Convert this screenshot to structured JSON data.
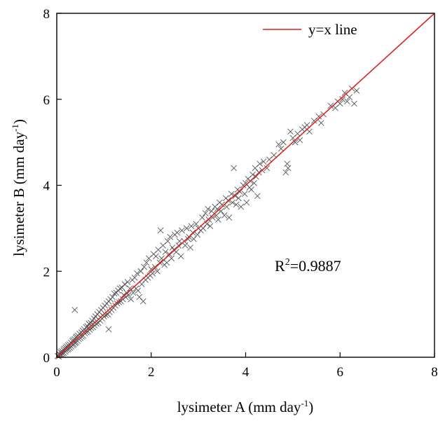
{
  "chart_data": {
    "type": "scatter",
    "xlabel": {
      "main": "lysimeter A (mm day",
      "sup": "-1",
      "end": ")"
    },
    "ylabel": {
      "main": "lysimeter B (mm day",
      "sup": "-1",
      "end": ")"
    },
    "xlim": [
      0,
      8
    ],
    "ylim": [
      0,
      8
    ],
    "xticks": [
      0,
      2,
      4,
      6,
      8
    ],
    "yticks": [
      0,
      2,
      4,
      6,
      8
    ],
    "grid": false,
    "legend": {
      "position": "top-right",
      "entries": [
        "y=x line"
      ]
    },
    "annotation": {
      "prefix": "R",
      "sup": "2",
      "value": "=0.9887"
    },
    "reference_line": {
      "name": "y=x line",
      "from": [
        0,
        0
      ],
      "to": [
        8,
        8
      ],
      "color": "#dd2222"
    },
    "marker_color": "#555555",
    "series": [
      {
        "marker": "x",
        "points": [
          [
            0.02,
            0.03
          ],
          [
            0.04,
            0.02
          ],
          [
            0.05,
            0.08
          ],
          [
            0.07,
            0.05
          ],
          [
            0.08,
            0.12
          ],
          [
            0.1,
            0.06
          ],
          [
            0.11,
            0.14
          ],
          [
            0.12,
            0.09
          ],
          [
            0.14,
            0.17
          ],
          [
            0.15,
            0.1
          ],
          [
            0.16,
            0.2
          ],
          [
            0.18,
            0.13
          ],
          [
            0.19,
            0.22
          ],
          [
            0.2,
            0.16
          ],
          [
            0.21,
            0.25
          ],
          [
            0.23,
            0.18
          ],
          [
            0.24,
            0.28
          ],
          [
            0.25,
            0.2
          ],
          [
            0.27,
            0.3
          ],
          [
            0.28,
            0.22
          ],
          [
            0.3,
            0.34
          ],
          [
            0.31,
            0.25
          ],
          [
            0.33,
            0.38
          ],
          [
            0.34,
            0.28
          ],
          [
            0.35,
            0.4
          ],
          [
            0.36,
            0.3
          ],
          [
            0.38,
            0.42
          ],
          [
            0.39,
            0.33
          ],
          [
            0.4,
            0.46
          ],
          [
            0.41,
            0.35
          ],
          [
            0.38,
            1.1
          ],
          [
            0.42,
            0.48
          ],
          [
            0.44,
            0.38
          ],
          [
            0.45,
            0.5
          ],
          [
            0.47,
            0.42
          ],
          [
            0.48,
            0.55
          ],
          [
            0.5,
            0.45
          ],
          [
            0.52,
            0.58
          ],
          [
            0.53,
            0.48
          ],
          [
            0.55,
            0.62
          ],
          [
            0.56,
            0.5
          ],
          [
            0.58,
            0.65
          ],
          [
            0.6,
            0.55
          ],
          [
            0.62,
            0.7
          ],
          [
            0.63,
            0.58
          ],
          [
            0.65,
            0.72
          ],
          [
            0.66,
            0.6
          ],
          [
            0.68,
            0.78
          ],
          [
            0.7,
            0.64
          ],
          [
            0.72,
            0.8
          ],
          [
            0.73,
            0.68
          ],
          [
            0.75,
            0.85
          ],
          [
            0.77,
            0.7
          ],
          [
            0.79,
            0.9
          ],
          [
            0.8,
            0.74
          ],
          [
            0.82,
            0.95
          ],
          [
            0.84,
            0.78
          ],
          [
            0.86,
            1.0
          ],
          [
            0.88,
            0.8
          ],
          [
            0.9,
            1.05
          ],
          [
            0.92,
            0.85
          ],
          [
            0.94,
            1.1
          ],
          [
            0.96,
            0.9
          ],
          [
            0.98,
            1.15
          ],
          [
            1.0,
            0.95
          ],
          [
            1.02,
            1.2
          ],
          [
            1.04,
            0.98
          ],
          [
            1.06,
            1.25
          ],
          [
            1.08,
            1.0
          ],
          [
            1.1,
            1.3
          ],
          [
            1.1,
            0.65
          ],
          [
            1.12,
            1.05
          ],
          [
            1.14,
            1.35
          ],
          [
            1.16,
            1.1
          ],
          [
            1.18,
            1.4
          ],
          [
            1.2,
            1.15
          ],
          [
            1.22,
            1.48
          ],
          [
            1.24,
            1.2
          ],
          [
            1.26,
            1.5
          ],
          [
            1.28,
            1.25
          ],
          [
            1.3,
            1.55
          ],
          [
            1.32,
            1.28
          ],
          [
            1.34,
            1.6
          ],
          [
            1.36,
            1.3
          ],
          [
            1.38,
            1.62
          ],
          [
            1.4,
            1.35
          ],
          [
            1.42,
            1.45
          ],
          [
            1.44,
            1.7
          ],
          [
            1.46,
            1.4
          ],
          [
            1.48,
            1.5
          ],
          [
            1.5,
            1.75
          ],
          [
            1.52,
            1.45
          ],
          [
            1.55,
            1.6
          ],
          [
            1.57,
            1.35
          ],
          [
            1.6,
            1.8
          ],
          [
            1.62,
            1.5
          ],
          [
            1.65,
            1.85
          ],
          [
            1.68,
            1.6
          ],
          [
            1.7,
            1.95
          ],
          [
            1.72,
            1.55
          ],
          [
            1.75,
            1.4
          ],
          [
            1.78,
            2.0
          ],
          [
            1.8,
            1.7
          ],
          [
            1.83,
            1.3
          ],
          [
            1.85,
            2.1
          ],
          [
            1.88,
            1.8
          ],
          [
            1.9,
            2.2
          ],
          [
            1.93,
            1.85
          ],
          [
            1.95,
            2.3
          ],
          [
            1.98,
            1.9
          ],
          [
            2.0,
            2.05
          ],
          [
            2.03,
            1.95
          ],
          [
            2.05,
            2.4
          ],
          [
            2.08,
            2.1
          ],
          [
            2.1,
            2.35
          ],
          [
            2.13,
            2.0
          ],
          [
            2.15,
            2.5
          ],
          [
            2.18,
            2.2
          ],
          [
            2.2,
            2.95
          ],
          [
            2.22,
            2.3
          ],
          [
            2.25,
            2.6
          ],
          [
            2.28,
            2.15
          ],
          [
            2.3,
            2.45
          ],
          [
            2.33,
            2.2
          ],
          [
            2.35,
            2.7
          ],
          [
            2.38,
            2.4
          ],
          [
            2.4,
            2.8
          ],
          [
            2.43,
            2.3
          ],
          [
            2.45,
            2.55
          ],
          [
            2.48,
            2.5
          ],
          [
            2.5,
            2.85
          ],
          [
            2.53,
            2.45
          ],
          [
            2.55,
            2.9
          ],
          [
            2.58,
            2.6
          ],
          [
            2.6,
            2.7
          ],
          [
            2.63,
            2.35
          ],
          [
            2.65,
            2.95
          ],
          [
            2.7,
            2.7
          ],
          [
            2.72,
            2.6
          ],
          [
            2.75,
            3.0
          ],
          [
            2.78,
            2.75
          ],
          [
            2.8,
            2.8
          ],
          [
            2.83,
            2.55
          ],
          [
            2.85,
            3.05
          ],
          [
            2.88,
            2.9
          ],
          [
            2.9,
            2.75
          ],
          [
            2.95,
            3.1
          ],
          [
            2.98,
            2.85
          ],
          [
            3.0,
            3.0
          ],
          [
            3.05,
            2.95
          ],
          [
            3.08,
            3.25
          ],
          [
            3.1,
            3.0
          ],
          [
            3.15,
            3.35
          ],
          [
            3.18,
            3.1
          ],
          [
            3.2,
            3.45
          ],
          [
            3.22,
            3.2
          ],
          [
            3.25,
            3.05
          ],
          [
            3.28,
            3.4
          ],
          [
            3.3,
            3.25
          ],
          [
            3.35,
            3.5
          ],
          [
            3.38,
            3.3
          ],
          [
            3.4,
            3.45
          ],
          [
            3.42,
            3.2
          ],
          [
            3.45,
            3.6
          ],
          [
            3.48,
            3.4
          ],
          [
            3.5,
            3.55
          ],
          [
            3.55,
            3.3
          ],
          [
            3.58,
            3.7
          ],
          [
            3.6,
            3.5
          ],
          [
            3.63,
            3.65
          ],
          [
            3.65,
            3.25
          ],
          [
            3.7,
            3.8
          ],
          [
            3.72,
            3.6
          ],
          [
            3.75,
            4.4
          ],
          [
            3.78,
            3.75
          ],
          [
            3.8,
            3.55
          ],
          [
            3.83,
            3.9
          ],
          [
            3.85,
            3.7
          ],
          [
            3.88,
            3.85
          ],
          [
            3.9,
            3.5
          ],
          [
            3.95,
            4.0
          ],
          [
            3.98,
            3.8
          ],
          [
            4.0,
            4.05
          ],
          [
            4.02,
            3.6
          ],
          [
            4.05,
            4.15
          ],
          [
            4.08,
            3.95
          ],
          [
            4.1,
            4.1
          ],
          [
            4.12,
            3.9
          ],
          [
            4.15,
            4.25
          ],
          [
            4.18,
            4.05
          ],
          [
            4.2,
            4.4
          ],
          [
            4.22,
            4.2
          ],
          [
            4.25,
            3.75
          ],
          [
            4.28,
            4.3
          ],
          [
            4.3,
            4.5
          ],
          [
            4.35,
            4.35
          ],
          [
            4.38,
            4.55
          ],
          [
            4.45,
            4.4
          ],
          [
            4.5,
            4.6
          ],
          [
            4.6,
            4.7
          ],
          [
            4.7,
            4.95
          ],
          [
            4.75,
            4.85
          ],
          [
            4.8,
            5.0
          ],
          [
            4.85,
            4.3
          ],
          [
            4.88,
            4.5
          ],
          [
            4.9,
            4.4
          ],
          [
            4.95,
            5.25
          ],
          [
            5.0,
            5.1
          ],
          [
            5.05,
            5.0
          ],
          [
            5.1,
            5.2
          ],
          [
            5.15,
            5.05
          ],
          [
            5.2,
            5.3
          ],
          [
            5.25,
            5.35
          ],
          [
            5.3,
            5.4
          ],
          [
            5.35,
            5.25
          ],
          [
            5.45,
            5.5
          ],
          [
            5.55,
            5.6
          ],
          [
            5.6,
            5.45
          ],
          [
            5.65,
            5.65
          ],
          [
            5.8,
            5.85
          ],
          [
            5.9,
            5.8
          ],
          [
            5.95,
            5.95
          ],
          [
            6.0,
            5.9
          ],
          [
            6.05,
            6.0
          ],
          [
            6.1,
            6.15
          ],
          [
            6.15,
            5.95
          ],
          [
            6.2,
            6.05
          ],
          [
            6.25,
            6.25
          ],
          [
            6.3,
            5.9
          ],
          [
            6.35,
            6.2
          ]
        ]
      }
    ]
  }
}
